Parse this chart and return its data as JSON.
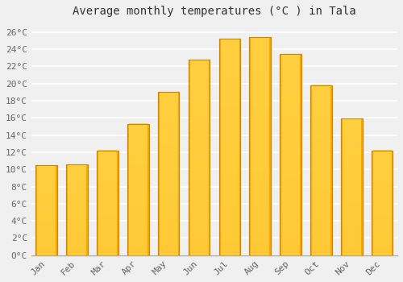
{
  "title": "Average monthly temperatures (°C ) in Tala",
  "months": [
    "Jan",
    "Feb",
    "Mar",
    "Apr",
    "May",
    "Jun",
    "Jul",
    "Aug",
    "Sep",
    "Oct",
    "Nov",
    "Dec"
  ],
  "temperatures": [
    10.5,
    10.6,
    12.2,
    15.3,
    19.0,
    22.8,
    25.2,
    25.4,
    23.4,
    19.8,
    15.9,
    12.2
  ],
  "bar_color": "#FFA500",
  "bar_gradient_light": "#FFD040",
  "bar_edge_color": "#CC8800",
  "yticks": [
    0,
    2,
    4,
    6,
    8,
    10,
    12,
    14,
    16,
    18,
    20,
    22,
    24,
    26
  ],
  "ylim": [
    0,
    27
  ],
  "background_color": "#f0f0f0",
  "grid_color": "#ffffff",
  "title_fontsize": 10,
  "tick_fontsize": 8,
  "font_family": "monospace"
}
